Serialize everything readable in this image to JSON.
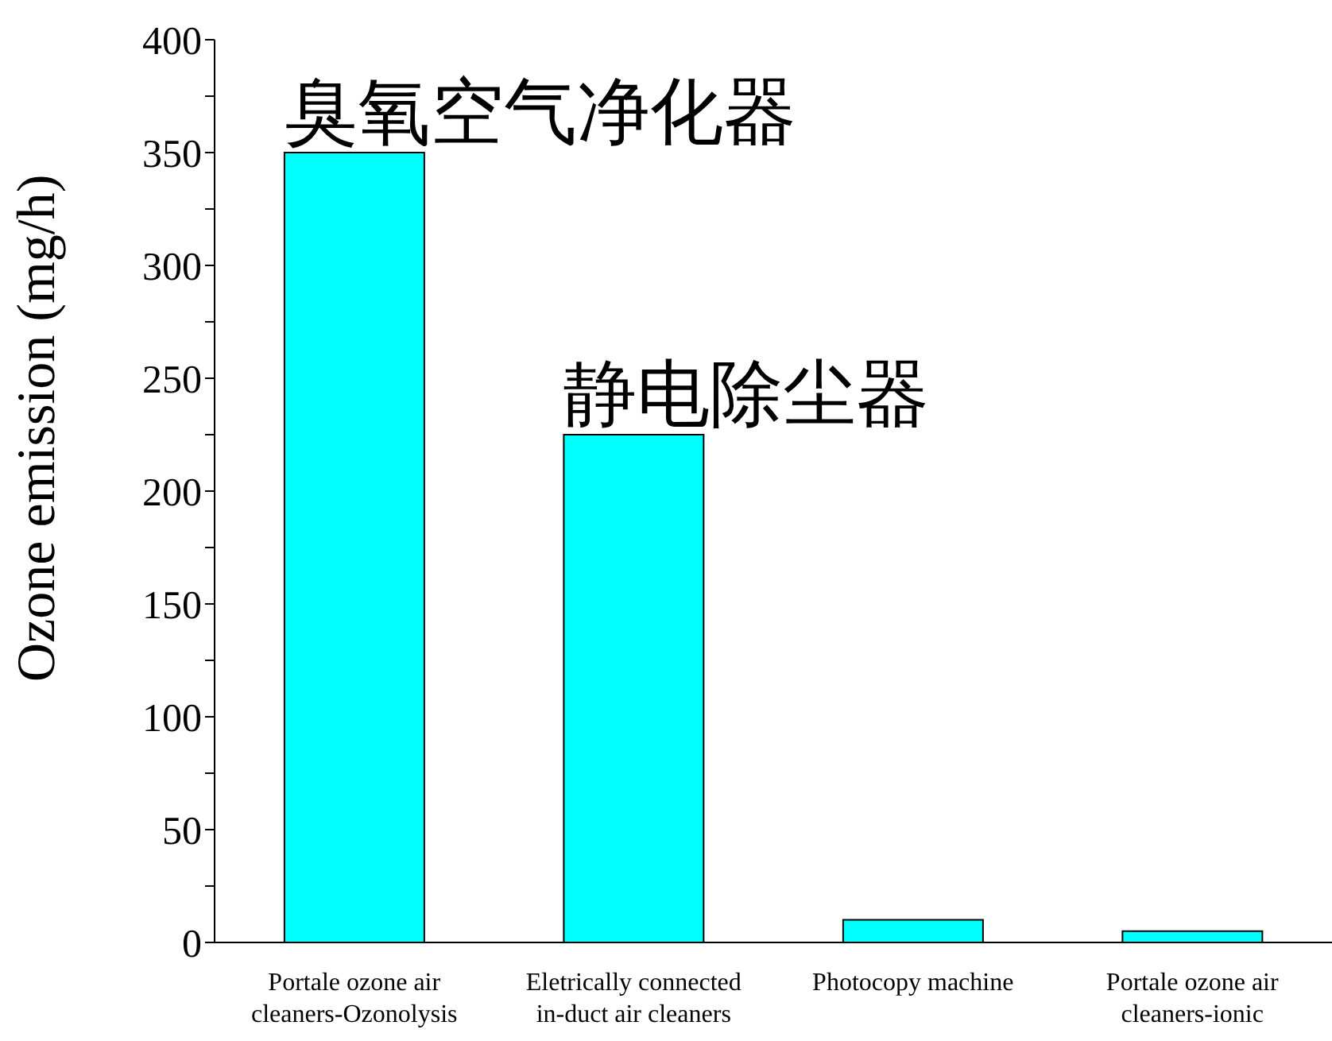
{
  "chart_data": {
    "type": "bar",
    "ylabel": "Ozone emission (mg/h)",
    "categories": [
      "Portale ozone air cleaners-Ozonolysis",
      "Eletrically connected in-duct air cleaners",
      "Photocopy machine",
      "Portale ozone air cleaners-ionic"
    ],
    "values": [
      350,
      225,
      10,
      5
    ],
    "color": "#00ffff",
    "ylim": [
      0,
      400
    ],
    "yticks": [
      0,
      {
        "value": 25,
        "label": null
      },
      50,
      {
        "value": 75,
        "label": null
      },
      100,
      {
        "value": 125,
        "label": null
      },
      150,
      {
        "value": 175,
        "label": null
      },
      200,
      {
        "value": 225,
        "label": null
      },
      250,
      {
        "value": 275,
        "label": null
      },
      300,
      {
        "value": 325,
        "label": null
      },
      350,
      {
        "value": 375,
        "label": null
      },
      400
    ],
    "annotations": [
      {
        "text": "臭氧空气净化器",
        "x": "Portale ozone air cleaners-Ozonolysis",
        "y": 350
      },
      {
        "text": "静电除尘器",
        "x": "Eletrically connected in-duct air cleaners",
        "y": 225
      }
    ],
    "grid": false
  }
}
